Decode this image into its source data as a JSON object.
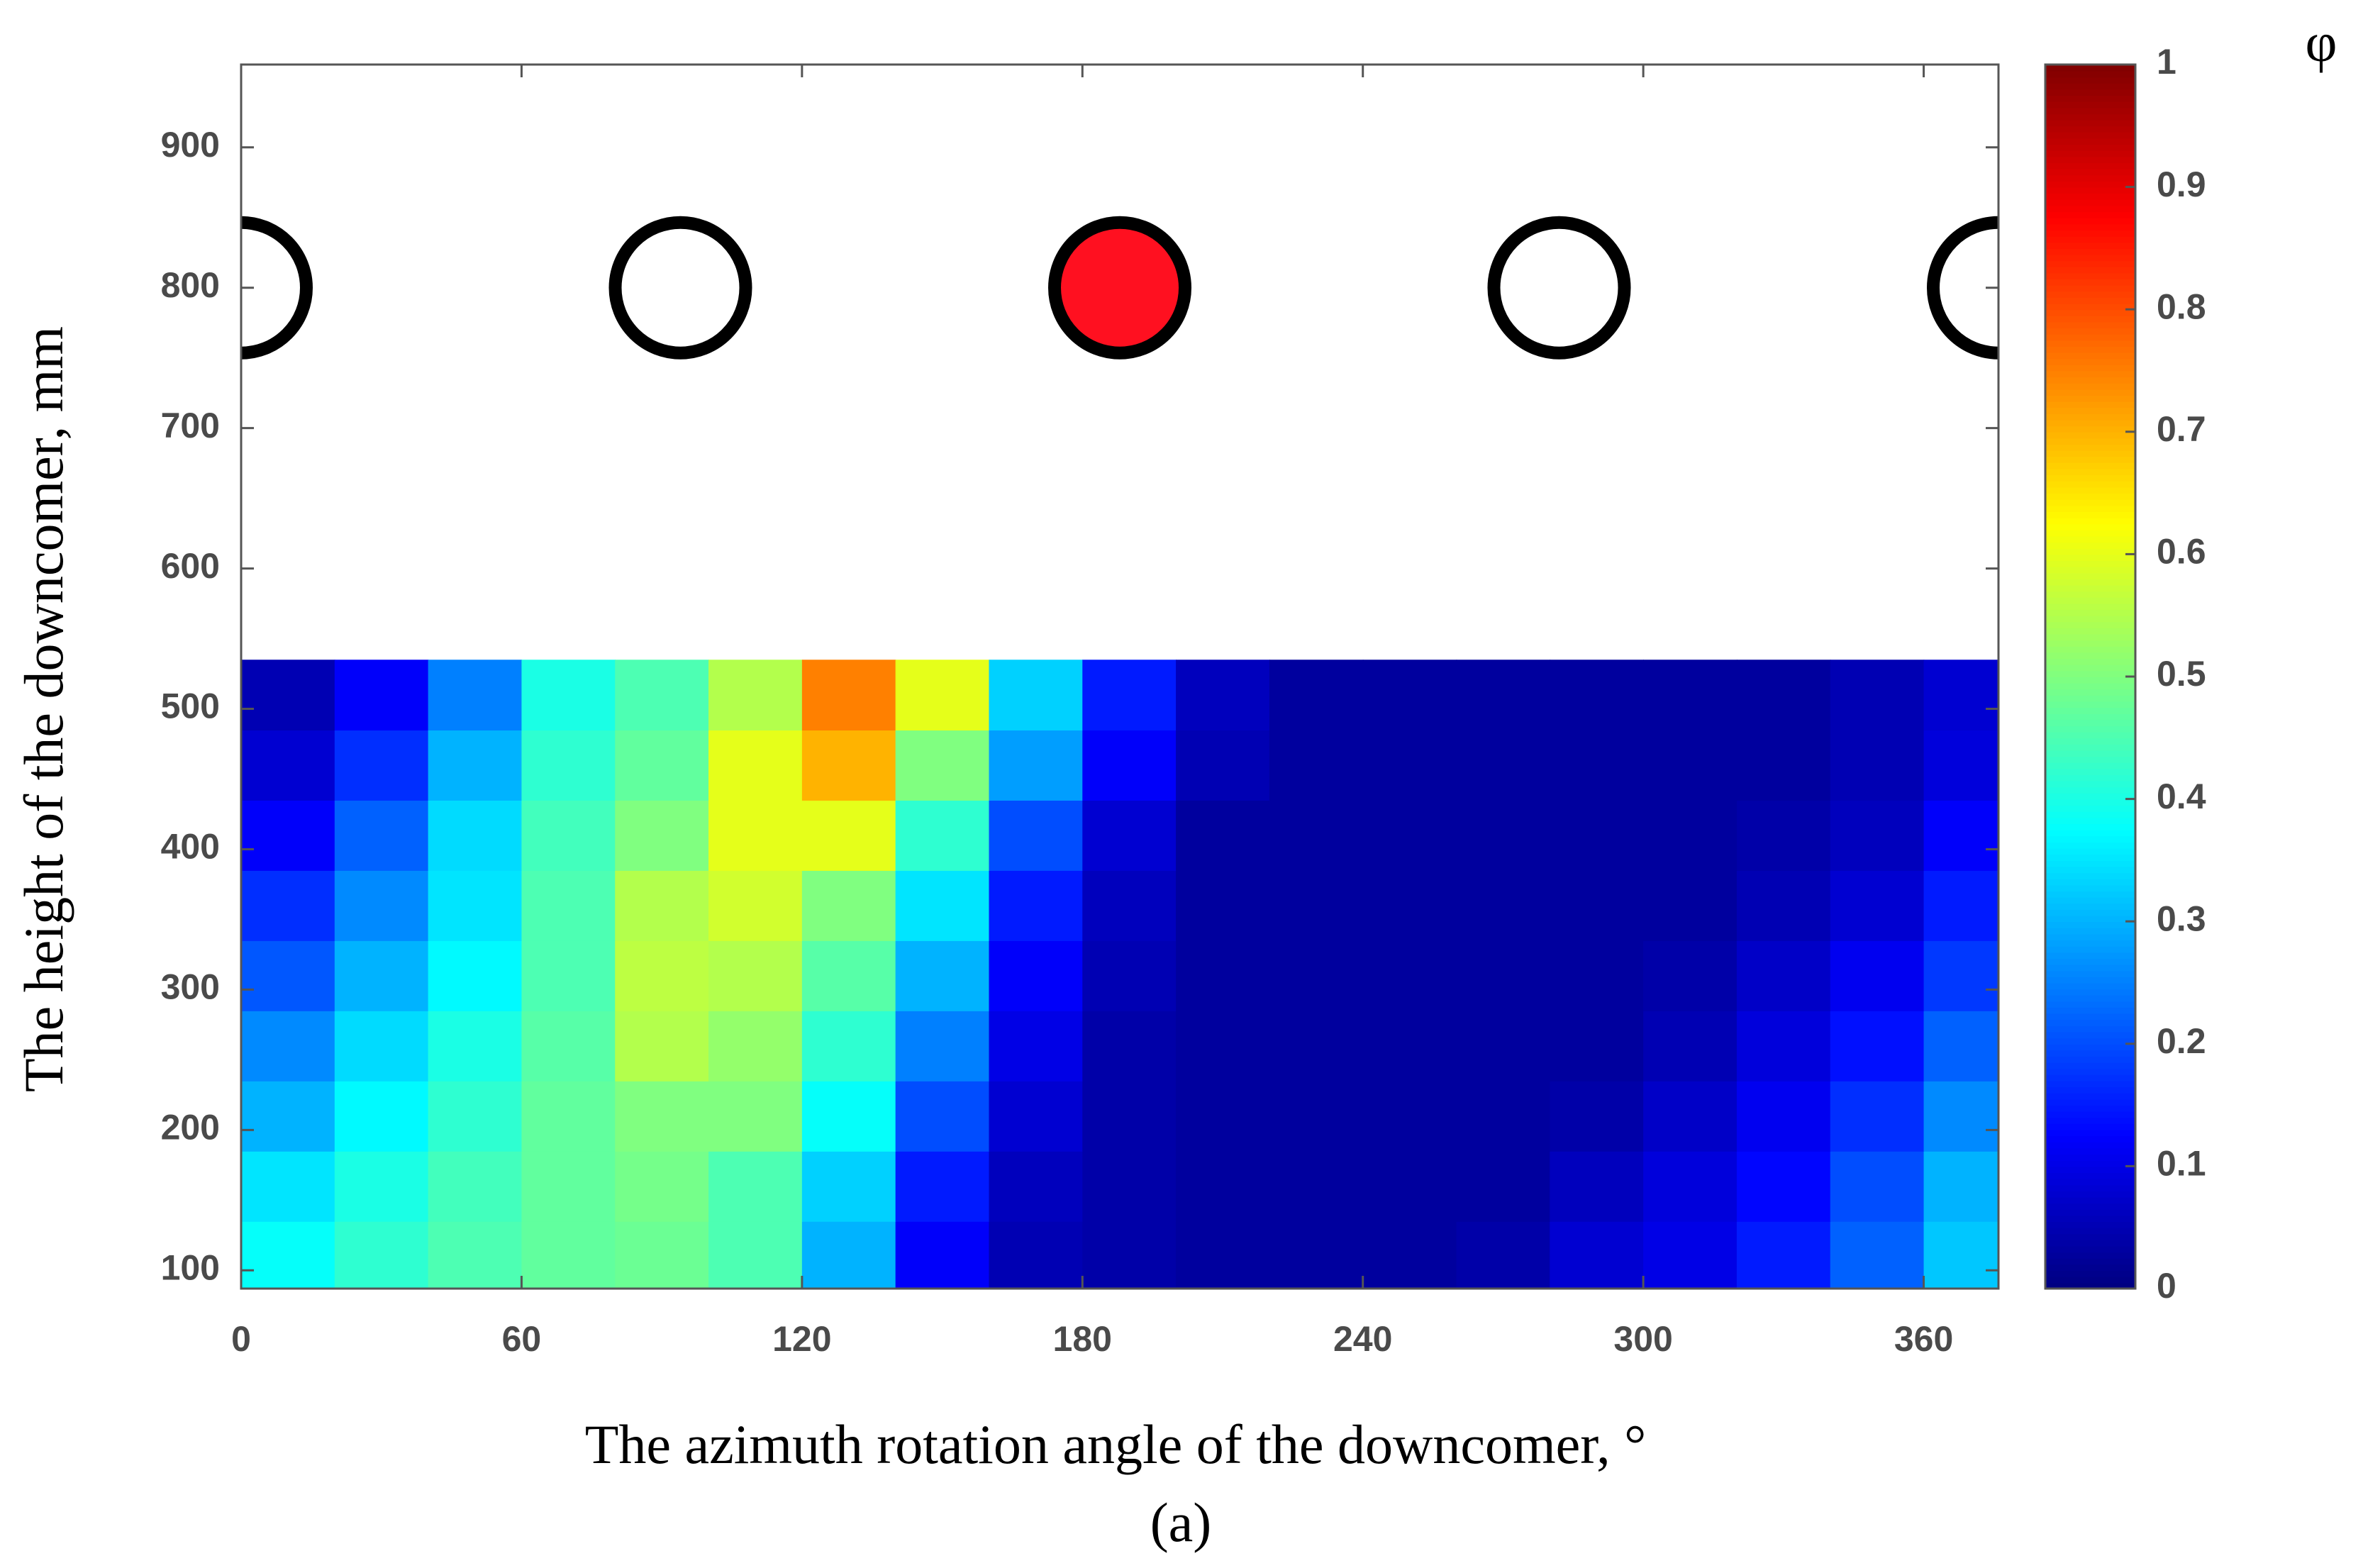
{
  "chart_data": {
    "type": "contour",
    "x_label": "The azimuth rotation angle of the downcomer, °",
    "y_label": "The height of the downcomer, mm",
    "colorbar_label": "φ",
    "caption": "(a)",
    "xlim": [
      0,
      376
    ],
    "ylim": [
      87,
      959
    ],
    "xticks": [
      0,
      60,
      120,
      180,
      240,
      300,
      360
    ],
    "yticks": [
      100,
      200,
      300,
      400,
      500,
      600,
      700,
      800,
      900
    ],
    "clim": [
      0,
      1
    ],
    "cticks": [
      0,
      0.1,
      0.2,
      0.3,
      0.4,
      0.5,
      0.6,
      0.7,
      0.8,
      0.9,
      1
    ],
    "colormap": "jet",
    "x": [
      10,
      30,
      50,
      70,
      90,
      110,
      130,
      150,
      170,
      190,
      210,
      230,
      250,
      270,
      290,
      310,
      330,
      350,
      370
    ],
    "y": [
      110,
      160,
      210,
      260,
      310,
      360,
      410,
      460,
      510
    ],
    "z": [
      [
        0.38,
        0.42,
        0.45,
        0.47,
        0.48,
        0.45,
        0.3,
        0.12,
        0.05,
        0.04,
        0.03,
        0.03,
        0.03,
        0.04,
        0.08,
        0.1,
        0.15,
        0.22,
        0.32
      ],
      [
        0.35,
        0.4,
        0.44,
        0.47,
        0.49,
        0.45,
        0.33,
        0.15,
        0.06,
        0.04,
        0.03,
        0.03,
        0.03,
        0.03,
        0.06,
        0.09,
        0.13,
        0.2,
        0.3
      ],
      [
        0.3,
        0.37,
        0.42,
        0.47,
        0.5,
        0.5,
        0.38,
        0.2,
        0.08,
        0.04,
        0.03,
        0.03,
        0.03,
        0.03,
        0.04,
        0.07,
        0.11,
        0.17,
        0.26
      ],
      [
        0.26,
        0.34,
        0.4,
        0.46,
        0.55,
        0.52,
        0.42,
        0.25,
        0.1,
        0.04,
        0.03,
        0.03,
        0.03,
        0.03,
        0.03,
        0.05,
        0.09,
        0.14,
        0.22
      ],
      [
        0.21,
        0.3,
        0.37,
        0.45,
        0.56,
        0.55,
        0.46,
        0.3,
        0.12,
        0.05,
        0.03,
        0.03,
        0.03,
        0.03,
        0.03,
        0.04,
        0.07,
        0.11,
        0.18
      ],
      [
        0.17,
        0.26,
        0.35,
        0.45,
        0.55,
        0.58,
        0.5,
        0.35,
        0.15,
        0.06,
        0.03,
        0.03,
        0.03,
        0.03,
        0.03,
        0.03,
        0.05,
        0.08,
        0.15
      ],
      [
        0.12,
        0.22,
        0.34,
        0.44,
        0.5,
        0.6,
        0.6,
        0.42,
        0.2,
        0.08,
        0.03,
        0.03,
        0.03,
        0.03,
        0.03,
        0.03,
        0.04,
        0.06,
        0.12
      ],
      [
        0.08,
        0.17,
        0.3,
        0.42,
        0.47,
        0.6,
        0.7,
        0.5,
        0.28,
        0.12,
        0.05,
        0.03,
        0.03,
        0.03,
        0.03,
        0.03,
        0.03,
        0.05,
        0.09
      ],
      [
        0.05,
        0.12,
        0.25,
        0.4,
        0.45,
        0.55,
        0.75,
        0.6,
        0.33,
        0.15,
        0.06,
        0.03,
        0.03,
        0.03,
        0.03,
        0.03,
        0.03,
        0.05,
        0.08
      ]
    ],
    "holes": {
      "x": [
        0,
        94,
        188,
        282,
        376
      ],
      "y": 800,
      "colors": [
        "#ffffff",
        "#ffffff",
        "#ff1020",
        "#ffffff",
        "#ffffff"
      ]
    }
  }
}
